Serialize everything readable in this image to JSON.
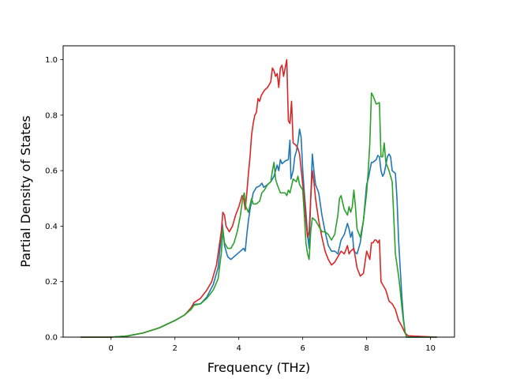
{
  "chart_data": {
    "type": "line",
    "title": "",
    "xlabel": "Frequency (THz)",
    "ylabel": "Partial Density of States",
    "xlim": [
      -1.5,
      10.75
    ],
    "ylim": [
      0.0,
      1.05
    ],
    "xticks": [
      0,
      2,
      4,
      6,
      8,
      10
    ],
    "xtick_labels": [
      "0",
      "2",
      "4",
      "6",
      "8",
      "10"
    ],
    "yticks": [
      0.0,
      0.2,
      0.4,
      0.6,
      0.8,
      1.0
    ],
    "ytick_labels": [
      "0.0",
      "0.2",
      "0.4",
      "0.6",
      "0.8",
      "1.0"
    ],
    "grid": false,
    "legend": false,
    "series": [
      {
        "color": "#1f77b4",
        "points": [
          [
            -0.95,
            0
          ],
          [
            0,
            0
          ],
          [
            0.5,
            0.004
          ],
          [
            1,
            0.015
          ],
          [
            1.5,
            0.033
          ],
          [
            2,
            0.06
          ],
          [
            2.3,
            0.08
          ],
          [
            2.5,
            0.1
          ],
          [
            2.6,
            0.118
          ],
          [
            2.8,
            0.12
          ],
          [
            3,
            0.145
          ],
          [
            3.2,
            0.19
          ],
          [
            3.35,
            0.25
          ],
          [
            3.42,
            0.33
          ],
          [
            3.48,
            0.41
          ],
          [
            3.55,
            0.33
          ],
          [
            3.65,
            0.29
          ],
          [
            3.75,
            0.28
          ],
          [
            3.9,
            0.295
          ],
          [
            4.05,
            0.31
          ],
          [
            4.15,
            0.32
          ],
          [
            4.2,
            0.31
          ],
          [
            4.25,
            0.37
          ],
          [
            4.3,
            0.42
          ],
          [
            4.35,
            0.46
          ],
          [
            4.45,
            0.52
          ],
          [
            4.55,
            0.54
          ],
          [
            4.65,
            0.545
          ],
          [
            4.72,
            0.555
          ],
          [
            4.78,
            0.54
          ],
          [
            4.9,
            0.55
          ],
          [
            5.0,
            0.56
          ],
          [
            5.1,
            0.58
          ],
          [
            5.2,
            0.62
          ],
          [
            5.25,
            0.6
          ],
          [
            5.3,
            0.64
          ],
          [
            5.35,
            0.625
          ],
          [
            5.45,
            0.635
          ],
          [
            5.55,
            0.64
          ],
          [
            5.6,
            0.71
          ],
          [
            5.63,
            0.57
          ],
          [
            5.7,
            0.6
          ],
          [
            5.75,
            0.65
          ],
          [
            5.8,
            0.67
          ],
          [
            5.85,
            0.7
          ],
          [
            5.9,
            0.75
          ],
          [
            5.95,
            0.72
          ],
          [
            6.0,
            0.6
          ],
          [
            6.05,
            0.52
          ],
          [
            6.1,
            0.45
          ],
          [
            6.15,
            0.37
          ],
          [
            6.2,
            0.32
          ],
          [
            6.25,
            0.5
          ],
          [
            6.3,
            0.66
          ],
          [
            6.35,
            0.6
          ],
          [
            6.4,
            0.55
          ],
          [
            6.5,
            0.52
          ],
          [
            6.6,
            0.44
          ],
          [
            6.7,
            0.38
          ],
          [
            6.8,
            0.33
          ],
          [
            6.9,
            0.31
          ],
          [
            7.0,
            0.31
          ],
          [
            7.1,
            0.3
          ],
          [
            7.2,
            0.35
          ],
          [
            7.3,
            0.37
          ],
          [
            7.4,
            0.41
          ],
          [
            7.45,
            0.39
          ],
          [
            7.5,
            0.36
          ],
          [
            7.55,
            0.38
          ],
          [
            7.6,
            0.31
          ],
          [
            7.7,
            0.3
          ],
          [
            7.8,
            0.34
          ],
          [
            7.9,
            0.42
          ],
          [
            8.0,
            0.55
          ],
          [
            8.05,
            0.57
          ],
          [
            8.1,
            0.6
          ],
          [
            8.15,
            0.63
          ],
          [
            8.2,
            0.63
          ],
          [
            8.3,
            0.64
          ],
          [
            8.35,
            0.655
          ],
          [
            8.4,
            0.65
          ],
          [
            8.45,
            0.6
          ],
          [
            8.5,
            0.58
          ],
          [
            8.55,
            0.59
          ],
          [
            8.65,
            0.65
          ],
          [
            8.7,
            0.66
          ],
          [
            8.75,
            0.65
          ],
          [
            8.8,
            0.6
          ],
          [
            8.9,
            0.59
          ],
          [
            8.95,
            0.5
          ],
          [
            9.0,
            0.35
          ],
          [
            9.05,
            0.25
          ],
          [
            9.1,
            0.15
          ],
          [
            9.15,
            0.07
          ],
          [
            9.2,
            0.02
          ],
          [
            9.25,
            0
          ],
          [
            10.2,
            0
          ]
        ]
      },
      {
        "color": "#d62728",
        "points": [
          [
            -0.95,
            0
          ],
          [
            0,
            0
          ],
          [
            0.5,
            0.004
          ],
          [
            1,
            0.015
          ],
          [
            1.5,
            0.033
          ],
          [
            2,
            0.06
          ],
          [
            2.3,
            0.08
          ],
          [
            2.5,
            0.105
          ],
          [
            2.6,
            0.125
          ],
          [
            2.8,
            0.14
          ],
          [
            3,
            0.17
          ],
          [
            3.15,
            0.2
          ],
          [
            3.3,
            0.26
          ],
          [
            3.4,
            0.34
          ],
          [
            3.45,
            0.38
          ],
          [
            3.5,
            0.45
          ],
          [
            3.55,
            0.44
          ],
          [
            3.6,
            0.4
          ],
          [
            3.7,
            0.38
          ],
          [
            3.8,
            0.4
          ],
          [
            3.9,
            0.44
          ],
          [
            4.0,
            0.47
          ],
          [
            4.1,
            0.51
          ],
          [
            4.15,
            0.5
          ],
          [
            4.2,
            0.46
          ],
          [
            4.25,
            0.52
          ],
          [
            4.3,
            0.59
          ],
          [
            4.35,
            0.65
          ],
          [
            4.4,
            0.73
          ],
          [
            4.45,
            0.77
          ],
          [
            4.5,
            0.8
          ],
          [
            4.55,
            0.81
          ],
          [
            4.6,
            0.86
          ],
          [
            4.65,
            0.85
          ],
          [
            4.7,
            0.87
          ],
          [
            4.8,
            0.89
          ],
          [
            4.9,
            0.9
          ],
          [
            5.0,
            0.92
          ],
          [
            5.05,
            0.97
          ],
          [
            5.1,
            0.96
          ],
          [
            5.15,
            0.94
          ],
          [
            5.2,
            0.95
          ],
          [
            5.25,
            0.9
          ],
          [
            5.3,
            0.97
          ],
          [
            5.35,
            0.98
          ],
          [
            5.4,
            0.94
          ],
          [
            5.45,
            0.97
          ],
          [
            5.5,
            1.0
          ],
          [
            5.55,
            0.78
          ],
          [
            5.6,
            0.77
          ],
          [
            5.65,
            0.85
          ],
          [
            5.7,
            0.7
          ],
          [
            5.8,
            0.69
          ],
          [
            5.85,
            0.68
          ],
          [
            5.9,
            0.66
          ],
          [
            6.0,
            0.55
          ],
          [
            6.05,
            0.5
          ],
          [
            6.1,
            0.42
          ],
          [
            6.15,
            0.36
          ],
          [
            6.2,
            0.38
          ],
          [
            6.25,
            0.5
          ],
          [
            6.3,
            0.6
          ],
          [
            6.35,
            0.56
          ],
          [
            6.4,
            0.5
          ],
          [
            6.5,
            0.42
          ],
          [
            6.6,
            0.36
          ],
          [
            6.7,
            0.31
          ],
          [
            6.8,
            0.28
          ],
          [
            6.9,
            0.26
          ],
          [
            7.0,
            0.27
          ],
          [
            7.1,
            0.29
          ],
          [
            7.2,
            0.31
          ],
          [
            7.3,
            0.3
          ],
          [
            7.4,
            0.33
          ],
          [
            7.45,
            0.3
          ],
          [
            7.5,
            0.31
          ],
          [
            7.6,
            0.32
          ],
          [
            7.7,
            0.25
          ],
          [
            7.8,
            0.22
          ],
          [
            7.9,
            0.23
          ],
          [
            8.0,
            0.31
          ],
          [
            8.1,
            0.28
          ],
          [
            8.15,
            0.34
          ],
          [
            8.2,
            0.34
          ],
          [
            8.25,
            0.35
          ],
          [
            8.3,
            0.35
          ],
          [
            8.35,
            0.34
          ],
          [
            8.4,
            0.35
          ],
          [
            8.45,
            0.2
          ],
          [
            8.5,
            0.19
          ],
          [
            8.6,
            0.17
          ],
          [
            8.7,
            0.13
          ],
          [
            8.8,
            0.12
          ],
          [
            8.9,
            0.1
          ],
          [
            9.0,
            0.06
          ],
          [
            9.1,
            0.04
          ],
          [
            9.2,
            0.015
          ],
          [
            9.3,
            0.005
          ],
          [
            10.2,
            0
          ]
        ]
      },
      {
        "color": "#2ca02c",
        "points": [
          [
            -0.95,
            0
          ],
          [
            0,
            0
          ],
          [
            0.5,
            0.004
          ],
          [
            1,
            0.015
          ],
          [
            1.5,
            0.033
          ],
          [
            2,
            0.06
          ],
          [
            2.3,
            0.08
          ],
          [
            2.5,
            0.1
          ],
          [
            2.6,
            0.115
          ],
          [
            2.8,
            0.12
          ],
          [
            3,
            0.14
          ],
          [
            3.2,
            0.17
          ],
          [
            3.35,
            0.21
          ],
          [
            3.45,
            0.3
          ],
          [
            3.5,
            0.39
          ],
          [
            3.55,
            0.34
          ],
          [
            3.65,
            0.32
          ],
          [
            3.75,
            0.32
          ],
          [
            3.85,
            0.34
          ],
          [
            3.95,
            0.38
          ],
          [
            4.05,
            0.44
          ],
          [
            4.12,
            0.5
          ],
          [
            4.17,
            0.52
          ],
          [
            4.22,
            0.47
          ],
          [
            4.3,
            0.45
          ],
          [
            4.4,
            0.5
          ],
          [
            4.45,
            0.48
          ],
          [
            4.55,
            0.48
          ],
          [
            4.65,
            0.49
          ],
          [
            4.72,
            0.52
          ],
          [
            4.8,
            0.53
          ],
          [
            4.9,
            0.55
          ],
          [
            5.0,
            0.56
          ],
          [
            5.05,
            0.6
          ],
          [
            5.1,
            0.63
          ],
          [
            5.15,
            0.57
          ],
          [
            5.2,
            0.55
          ],
          [
            5.3,
            0.52
          ],
          [
            5.45,
            0.52
          ],
          [
            5.5,
            0.51
          ],
          [
            5.55,
            0.53
          ],
          [
            5.6,
            0.52
          ],
          [
            5.7,
            0.57
          ],
          [
            5.8,
            0.56
          ],
          [
            5.85,
            0.58
          ],
          [
            5.9,
            0.55
          ],
          [
            6.0,
            0.53
          ],
          [
            6.05,
            0.44
          ],
          [
            6.1,
            0.34
          ],
          [
            6.15,
            0.3
          ],
          [
            6.2,
            0.28
          ],
          [
            6.25,
            0.38
          ],
          [
            6.3,
            0.43
          ],
          [
            6.4,
            0.42
          ],
          [
            6.5,
            0.4
          ],
          [
            6.6,
            0.38
          ],
          [
            6.7,
            0.38
          ],
          [
            6.8,
            0.37
          ],
          [
            6.9,
            0.35
          ],
          [
            7.0,
            0.37
          ],
          [
            7.1,
            0.44
          ],
          [
            7.15,
            0.5
          ],
          [
            7.2,
            0.51
          ],
          [
            7.3,
            0.46
          ],
          [
            7.4,
            0.44
          ],
          [
            7.45,
            0.47
          ],
          [
            7.5,
            0.45
          ],
          [
            7.55,
            0.47
          ],
          [
            7.6,
            0.53
          ],
          [
            7.65,
            0.47
          ],
          [
            7.7,
            0.39
          ],
          [
            7.8,
            0.36
          ],
          [
            7.9,
            0.42
          ],
          [
            8.0,
            0.52
          ],
          [
            8.05,
            0.6
          ],
          [
            8.1,
            0.7
          ],
          [
            8.15,
            0.88
          ],
          [
            8.2,
            0.87
          ],
          [
            8.3,
            0.84
          ],
          [
            8.4,
            0.845
          ],
          [
            8.45,
            0.65
          ],
          [
            8.5,
            0.65
          ],
          [
            8.55,
            0.7
          ],
          [
            8.6,
            0.63
          ],
          [
            8.7,
            0.6
          ],
          [
            8.8,
            0.56
          ],
          [
            8.9,
            0.3
          ],
          [
            9.0,
            0.22
          ],
          [
            9.05,
            0.17
          ],
          [
            9.1,
            0.11
          ],
          [
            9.15,
            0.06
          ],
          [
            9.2,
            0.02
          ],
          [
            9.25,
            0
          ],
          [
            10.2,
            0
          ]
        ]
      }
    ]
  }
}
